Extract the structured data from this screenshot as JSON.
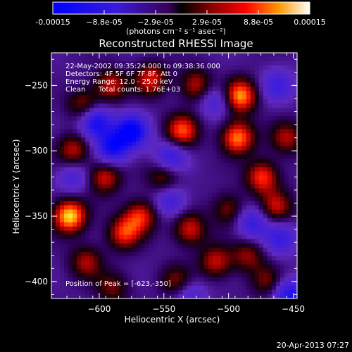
{
  "chart_data": {
    "type": "heatmap",
    "title": "Reconstructed RHESSI Image",
    "xlabel": "Heliocentric X (arcsec)",
    "ylabel": "Heliocentric Y (arcsec)",
    "xlim": [
      -637,
      -447
    ],
    "ylim": [
      -413,
      -225
    ],
    "x_ticks": [
      -600,
      -550,
      -500,
      -450
    ],
    "y_ticks": [
      -250,
      -300,
      -350,
      -400
    ],
    "colorbar": {
      "ticks": [
        "-0.00015",
        "−8.8e-05",
        "−2.9e-05",
        "2.9e-05",
        "8.8e-05",
        "0.00015"
      ],
      "label": "(photons cm⁻² s⁻¹ asec⁻²)",
      "range": [
        -0.00015,
        0.00015
      ]
    },
    "peak": [
      -623,
      -350
    ],
    "sources": [
      {
        "x": -623,
        "y": -350,
        "intensity": 1.0
      },
      {
        "x": -491,
        "y": -258,
        "intensity": 0.9
      },
      {
        "x": -493,
        "y": -290,
        "intensity": 0.85
      },
      {
        "x": -536,
        "y": -285,
        "intensity": 0.75
      },
      {
        "x": -568,
        "y": -350,
        "intensity": 0.65
      },
      {
        "x": -581,
        "y": -363,
        "intensity": 0.65
      },
      {
        "x": -474,
        "y": -320,
        "intensity": 0.7
      },
      {
        "x": -463,
        "y": -343,
        "intensity": 0.55
      },
      {
        "x": -530,
        "y": -360,
        "intensity": 0.6
      },
      {
        "x": -510,
        "y": -385,
        "intensity": 0.55
      },
      {
        "x": -596,
        "y": -320,
        "intensity": 0.6
      },
      {
        "x": -620,
        "y": -300,
        "intensity": 0.55
      },
      {
        "x": -610,
        "y": -385,
        "intensity": 0.5
      },
      {
        "x": -560,
        "y": -245,
        "intensity": 0.6
      },
      {
        "x": -591,
        "y": -250,
        "intensity": 0.55
      },
      {
        "x": -525,
        "y": -250,
        "intensity": 0.55
      },
      {
        "x": -550,
        "y": -320,
        "intensity": 0.5
      },
      {
        "x": -485,
        "y": -380,
        "intensity": 0.45
      },
      {
        "x": -455,
        "y": -290,
        "intensity": 0.5
      },
      {
        "x": -470,
        "y": -400,
        "intensity": 0.4
      },
      {
        "x": -590,
        "y": -405,
        "intensity": 0.4
      },
      {
        "x": -540,
        "y": -400,
        "intensity": 0.45
      },
      {
        "x": -612,
        "y": -265,
        "intensity": 0.5
      },
      {
        "x": -500,
        "y": -345,
        "intensity": 0.45
      },
      {
        "x": -575,
        "y": -285,
        "intensity": -0.9
      },
      {
        "x": -603,
        "y": -278,
        "intensity": -0.8
      },
      {
        "x": -590,
        "y": -298,
        "intensity": -0.75
      },
      {
        "x": -545,
        "y": -305,
        "intensity": -0.6
      },
      {
        "x": -545,
        "y": -338,
        "intensity": -0.5
      },
      {
        "x": -482,
        "y": -355,
        "intensity": -0.55
      },
      {
        "x": -460,
        "y": -367,
        "intensity": -0.5
      },
      {
        "x": -453,
        "y": -410,
        "intensity": -0.7
      },
      {
        "x": -620,
        "y": -320,
        "intensity": -0.4
      },
      {
        "x": -510,
        "y": -262,
        "intensity": -0.45
      },
      {
        "x": -462,
        "y": -250,
        "intensity": -0.45
      },
      {
        "x": -530,
        "y": -410,
        "intensity": -0.4
      }
    ]
  },
  "info": {
    "time_range": "22-May-2002 09:35:24.000 to 09:38:36.000",
    "detectors": "Detectors: 4F 5F 6F 7F 8F, Att 0",
    "energy_range": "Energy Range: 12.0 - 25.0 keV",
    "algorithm": "Clean",
    "total_counts": "Total counts: 1.76E+03",
    "peak_label": "Position of Peak = [-623,-350]"
  },
  "footer": {
    "timestamp": "20-Apr-2013 07:27"
  }
}
